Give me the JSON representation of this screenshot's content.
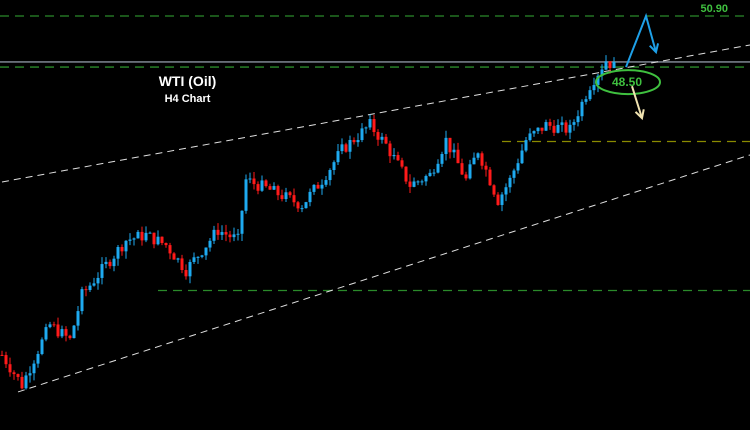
{
  "chart_data": {
    "type": "candlestick",
    "title": "WTI (Oil)",
    "subtitle": "H4 Chart",
    "price_range": [
      33.0,
      51.2
    ],
    "colors": {
      "bull": "#1eaaf0",
      "bear": "#ff1a1a",
      "level": "#2a8a2a",
      "support": "#8a8a00",
      "trend": "#e0e0e0",
      "label": "#3fc03f",
      "arrow_up": "#1ea0e8",
      "arrow_down": "#f0e2b0"
    },
    "close_path": [
      {
        "bar": 0,
        "price": 34.97
      },
      {
        "bar": 5,
        "price": 33.56
      },
      {
        "bar": 9,
        "price": 35.2
      },
      {
        "bar": 12,
        "price": 36.38
      },
      {
        "bar": 17,
        "price": 35.67
      },
      {
        "bar": 20,
        "price": 37.79
      },
      {
        "bar": 25,
        "price": 38.96
      },
      {
        "bar": 31,
        "price": 40.37
      },
      {
        "bar": 36,
        "price": 40.61
      },
      {
        "bar": 41,
        "price": 40.14
      },
      {
        "bar": 46,
        "price": 38.96
      },
      {
        "bar": 50,
        "price": 39.9
      },
      {
        "bar": 54,
        "price": 40.84
      },
      {
        "bar": 59,
        "price": 40.37
      },
      {
        "bar": 61,
        "price": 43.19
      },
      {
        "bar": 67,
        "price": 42.72
      },
      {
        "bar": 75,
        "price": 42.02
      },
      {
        "bar": 80,
        "price": 43.19
      },
      {
        "bar": 85,
        "price": 44.6
      },
      {
        "bar": 92,
        "price": 45.78
      },
      {
        "bar": 96,
        "price": 44.84
      },
      {
        "bar": 102,
        "price": 42.96
      },
      {
        "bar": 107,
        "price": 43.43
      },
      {
        "bar": 111,
        "price": 45.07
      },
      {
        "bar": 116,
        "price": 43.19
      },
      {
        "bar": 119,
        "price": 44.6
      },
      {
        "bar": 124,
        "price": 42.25
      },
      {
        "bar": 127,
        "price": 43.19
      },
      {
        "bar": 131,
        "price": 45.07
      },
      {
        "bar": 136,
        "price": 45.78
      },
      {
        "bar": 142,
        "price": 45.54
      },
      {
        "bar": 147,
        "price": 47.66
      },
      {
        "bar": 151,
        "price": 48.83
      },
      {
        "bar": 154,
        "price": 48.36
      }
    ],
    "levels": [
      {
        "price": 50.9,
        "label": "50.90",
        "style": "dashed",
        "color": "level"
      },
      {
        "price": 48.74,
        "style": "solid",
        "color": "grey"
      },
      {
        "price": 48.5,
        "label": "48.50",
        "style": "dashed",
        "color": "level",
        "circled": true
      },
      {
        "price": 45.0,
        "style": "dashed",
        "color": "support",
        "from_bar": 125
      },
      {
        "price": 38.0,
        "style": "dashed",
        "color": "level",
        "from_bar": 39
      }
    ],
    "trendlines": [
      {
        "from": {
          "bar": 0,
          "price": 43.1
        },
        "to": {
          "bar": 187,
          "price": 49.54
        }
      },
      {
        "from": {
          "bar": 4,
          "price": 33.23
        },
        "to": {
          "bar": 187,
          "price": 44.37
        }
      }
    ],
    "scenarios": [
      {
        "direction": "up",
        "path": [
          {
            "bar": 156,
            "price": 48.5
          },
          {
            "bar": 161,
            "price": 50.9
          },
          {
            "bar": 163.5,
            "price": 49.2
          }
        ]
      },
      {
        "direction": "down",
        "path": [
          {
            "bar": 157.5,
            "price": 47.6
          },
          {
            "bar": 160,
            "price": 46.1
          }
        ]
      }
    ]
  }
}
